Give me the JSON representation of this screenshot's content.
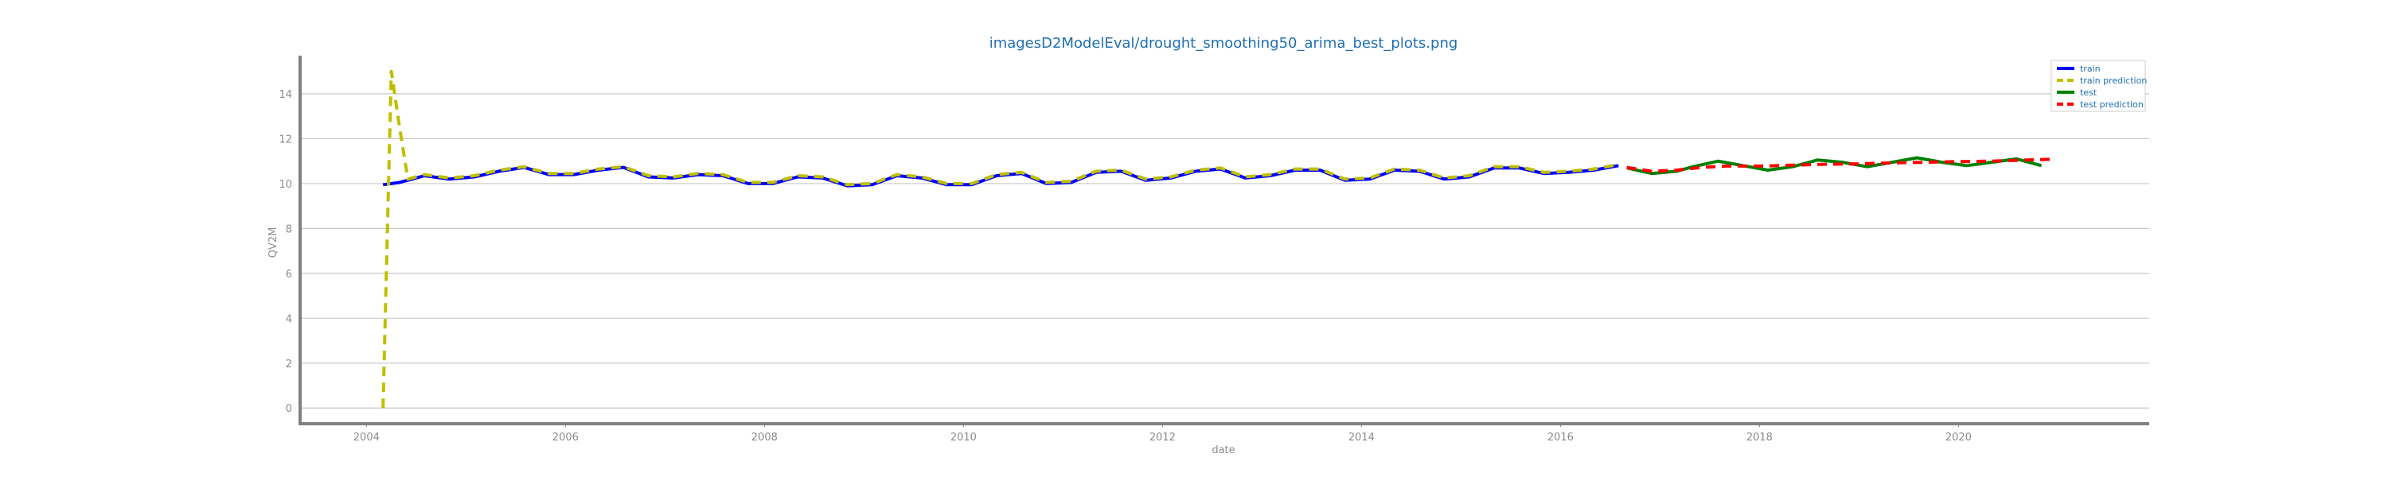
{
  "chart_data": {
    "type": "line",
    "title": "imagesD2ModelEval/drought_smoothing50_arima_best_plots.png",
    "xlabel": "date",
    "ylabel": "QV2M",
    "xlim": [
      "2003-05-01",
      "2021-12-01"
    ],
    "ylim": [
      -0.7,
      15.7
    ],
    "xticks": [
      "2004",
      "2006",
      "2008",
      "2010",
      "2012",
      "2014",
      "2016",
      "2018",
      "2020"
    ],
    "yticks": [
      0,
      2,
      4,
      6,
      8,
      10,
      12,
      14
    ],
    "grid": "y",
    "legend_position": "upper right",
    "colors": {
      "title": "#1f6fb2",
      "legend_text": "#1f6fb2",
      "grid": "#c8c8c8",
      "spine": "#808080",
      "tick_text": "#8c8c8c"
    },
    "series": [
      {
        "name": "train",
        "color": "#0000ff",
        "style": "solid",
        "x": [
          "2004-03",
          "2004-05",
          "2004-08",
          "2004-11",
          "2005-02",
          "2005-05",
          "2005-08",
          "2005-11",
          "2006-02",
          "2006-05",
          "2006-08",
          "2006-11",
          "2007-02",
          "2007-05",
          "2007-08",
          "2007-11",
          "2008-02",
          "2008-05",
          "2008-08",
          "2008-11",
          "2009-02",
          "2009-05",
          "2009-08",
          "2009-11",
          "2010-02",
          "2010-05",
          "2010-08",
          "2010-11",
          "2011-02",
          "2011-05",
          "2011-08",
          "2011-11",
          "2012-02",
          "2012-05",
          "2012-08",
          "2012-11",
          "2013-02",
          "2013-05",
          "2013-08",
          "2013-11",
          "2014-02",
          "2014-05",
          "2014-08",
          "2014-11",
          "2015-02",
          "2015-05",
          "2015-08",
          "2015-11",
          "2016-02",
          "2016-05",
          "2016-08"
        ],
        "y": [
          9.95,
          10.05,
          10.35,
          10.2,
          10.3,
          10.55,
          10.72,
          10.4,
          10.4,
          10.6,
          10.72,
          10.3,
          10.25,
          10.4,
          10.35,
          10.0,
          10.0,
          10.3,
          10.25,
          9.9,
          9.95,
          10.35,
          10.25,
          9.95,
          9.95,
          10.35,
          10.45,
          10.0,
          10.05,
          10.5,
          10.55,
          10.15,
          10.25,
          10.55,
          10.65,
          10.25,
          10.35,
          10.6,
          10.6,
          10.15,
          10.2,
          10.6,
          10.55,
          10.2,
          10.3,
          10.7,
          10.7,
          10.45,
          10.5,
          10.6,
          10.8
        ]
      },
      {
        "name": "train prediction",
        "color": "#bfbf00",
        "style": "dashed",
        "x": [
          "2004-03",
          "2004-04",
          "2004-05",
          "2004-06",
          "2004-08",
          "2004-11",
          "2005-02",
          "2005-05",
          "2005-08",
          "2005-11",
          "2006-02",
          "2006-05",
          "2006-08",
          "2006-11",
          "2007-02",
          "2007-05",
          "2007-08",
          "2007-11",
          "2008-02",
          "2008-05",
          "2008-08",
          "2008-11",
          "2009-02",
          "2009-05",
          "2009-08",
          "2009-11",
          "2010-02",
          "2010-05",
          "2010-08",
          "2010-11",
          "2011-02",
          "2011-05",
          "2011-08",
          "2011-11",
          "2012-02",
          "2012-05",
          "2012-08",
          "2012-11",
          "2013-02",
          "2013-05",
          "2013-08",
          "2013-11",
          "2014-02",
          "2014-05",
          "2014-08",
          "2014-11",
          "2015-02",
          "2015-05",
          "2015-08",
          "2015-11",
          "2016-02",
          "2016-05",
          "2016-08"
        ],
        "y": [
          0.0,
          15.0,
          12.5,
          10.2,
          10.4,
          10.25,
          10.35,
          10.6,
          10.75,
          10.45,
          10.45,
          10.65,
          10.75,
          10.35,
          10.3,
          10.45,
          10.4,
          10.05,
          10.05,
          10.35,
          10.3,
          9.95,
          10.0,
          10.4,
          10.3,
          10.0,
          10.0,
          10.4,
          10.5,
          10.05,
          10.1,
          10.55,
          10.6,
          10.2,
          10.3,
          10.6,
          10.7,
          10.3,
          10.4,
          10.65,
          10.65,
          10.2,
          10.25,
          10.65,
          10.6,
          10.25,
          10.35,
          10.75,
          10.75,
          10.5,
          10.55,
          10.65,
          10.85
        ]
      },
      {
        "name": "test",
        "color": "#008000",
        "style": "solid",
        "x": [
          "2016-09",
          "2016-12",
          "2017-03",
          "2017-05",
          "2017-08",
          "2017-11",
          "2018-02",
          "2018-05",
          "2018-08",
          "2018-11",
          "2019-02",
          "2019-05",
          "2019-08",
          "2019-11",
          "2020-02",
          "2020-05",
          "2020-08",
          "2020-11"
        ],
        "y": [
          10.7,
          10.45,
          10.55,
          10.75,
          11.0,
          10.8,
          10.6,
          10.75,
          11.05,
          10.95,
          10.75,
          10.95,
          11.15,
          10.95,
          10.8,
          10.95,
          11.1,
          10.8
        ]
      },
      {
        "name": "test prediction",
        "color": "#ff0000",
        "style": "dashed",
        "x": [
          "2016-09",
          "2016-12",
          "2017-03",
          "2017-06",
          "2017-09",
          "2018-01",
          "2018-05",
          "2018-09",
          "2019-01",
          "2019-05",
          "2019-09",
          "2020-01",
          "2020-05",
          "2020-09",
          "2020-12"
        ],
        "y": [
          10.72,
          10.55,
          10.6,
          10.72,
          10.78,
          10.78,
          10.82,
          10.86,
          10.88,
          10.92,
          10.95,
          10.98,
          11.0,
          11.05,
          11.08
        ]
      }
    ]
  }
}
